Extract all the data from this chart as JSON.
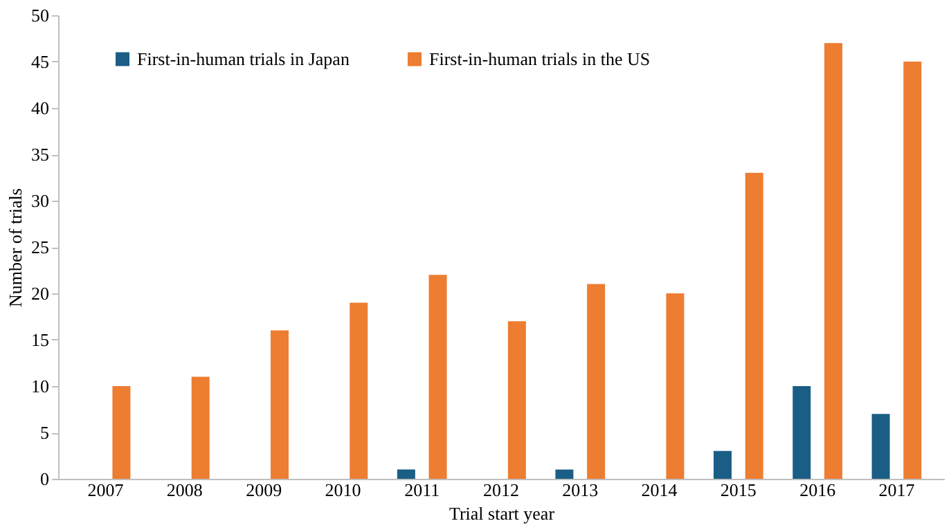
{
  "chart_data": {
    "type": "bar",
    "xlabel": "Trial start year",
    "ylabel": "Number of trials",
    "categories": [
      "2007",
      "2008",
      "2009",
      "2010",
      "2011",
      "2012",
      "2013",
      "2014",
      "2015",
      "2016",
      "2017"
    ],
    "series": [
      {
        "name": "First-in-human trials in Japan",
        "color": "#1a5e86",
        "values": [
          0,
          0,
          0,
          0,
          1,
          0,
          1,
          0,
          3,
          10,
          7
        ]
      },
      {
        "name": "First-in-human trials in the US",
        "color": "#ed7d31",
        "values": [
          10,
          11,
          16,
          19,
          22,
          17,
          21,
          20,
          33,
          47,
          45
        ]
      }
    ],
    "ylim": [
      0,
      50
    ],
    "yticks": [
      0,
      5,
      10,
      15,
      20,
      25,
      30,
      35,
      40,
      45,
      50
    ],
    "grid": false,
    "legend": "top left"
  }
}
